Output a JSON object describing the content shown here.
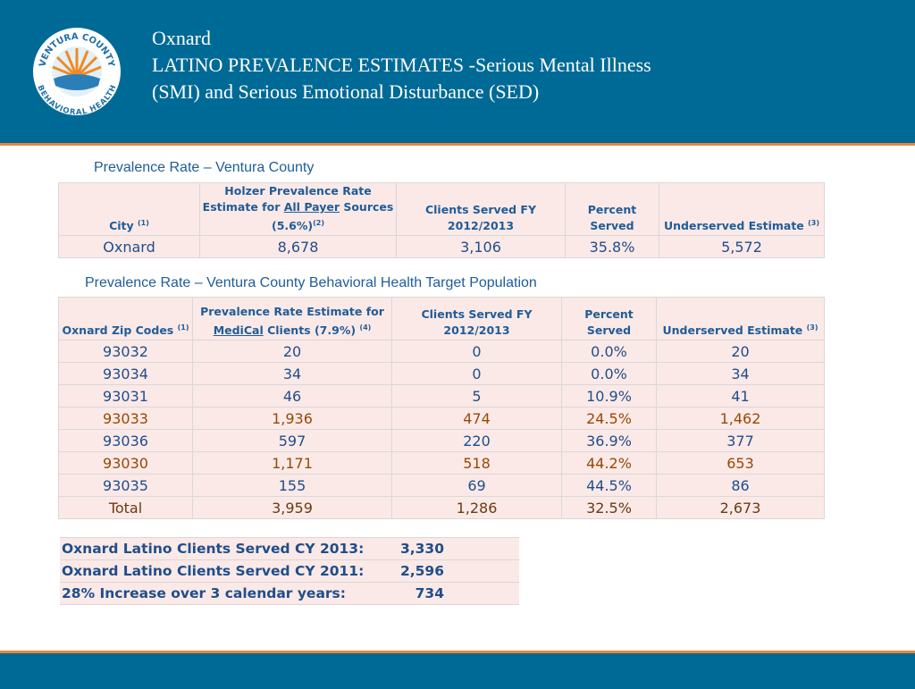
{
  "logo": {
    "top": "VENTURA COUNTY",
    "bottom": "BEHAVIORAL HEALTH"
  },
  "header": {
    "title_lines": [
      "Oxnard",
      "LATINO PREVALENCE ESTIMATES -Serious Mental Illness",
      "(SMI) and Serious Emotional Disturbance (SED)"
    ]
  },
  "section1": {
    "title": "Prevalence Rate – Ventura County",
    "table": {
      "header": [
        [
          {
            "text": "City "
          },
          {
            "text": "(1)",
            "sup": true
          }
        ],
        [
          {
            "text": "Holzer Prevalence Rate Estimate for "
          },
          {
            "text": "All Payer",
            "underline": true
          },
          {
            "text": " Sources (5.6%)"
          },
          {
            "text": "(2)",
            "sup": true
          }
        ],
        [
          {
            "text": "Clients Served FY 2012/2013"
          }
        ],
        [
          {
            "text": "Percent Served"
          }
        ],
        [
          {
            "text": "Underserved Estimate "
          },
          {
            "text": "(3)",
            "sup": true
          }
        ]
      ],
      "rows": [
        {
          "cells": [
            "Oxnard",
            "8,678",
            "3,106",
            "35.8%",
            "5,572"
          ],
          "color": "#1f4e8c"
        }
      ]
    }
  },
  "section2": {
    "title": "Prevalence Rate – Ventura County Behavioral Health Target Population",
    "table": {
      "header": [
        [
          {
            "text": "Oxnard Zip Codes "
          },
          {
            "text": "(1)",
            "sup": true
          }
        ],
        [
          {
            "text": "Prevalence Rate Estimate for "
          },
          {
            "text": "MediCal",
            "underline": true
          },
          {
            "text": " Clients (7.9%) "
          },
          {
            "text": "(4)",
            "sup": true
          }
        ],
        [
          {
            "text": "Clients Served FY 2012/2013"
          }
        ],
        [
          {
            "text": "Percent Served"
          }
        ],
        [
          {
            "text": "Underserved Estimate "
          },
          {
            "text": "(3)",
            "sup": true
          }
        ]
      ],
      "rows": [
        {
          "cells": [
            "93032",
            "20",
            "0",
            "0.0%",
            "20"
          ],
          "color": "#1f4e8c"
        },
        {
          "cells": [
            "93034",
            "34",
            "0",
            "0.0%",
            "34"
          ],
          "color": "#1f4e8c"
        },
        {
          "cells": [
            "93031",
            "46",
            "5",
            "10.9%",
            "41"
          ],
          "color": "#1f4e8c"
        },
        {
          "cells": [
            "93033",
            "1,936",
            "474",
            "24.5%",
            "1,462"
          ],
          "color": "#974806"
        },
        {
          "cells": [
            "93036",
            "597",
            "220",
            "36.9%",
            "377"
          ],
          "color": "#1f4e8c"
        },
        {
          "cells": [
            "93030",
            "1,171",
            "518",
            "44.2%",
            "653"
          ],
          "color": "#974806"
        },
        {
          "cells": [
            "93035",
            "155",
            "69",
            "44.5%",
            "86"
          ],
          "color": "#1f4e8c"
        },
        {
          "cells": [
            "Total",
            "3,959",
            "1,286",
            "32.5%",
            "2,673"
          ],
          "color": "#6b3a10"
        }
      ]
    }
  },
  "summary": {
    "rows": [
      [
        "Oxnard Latino Clients Served CY 2013:",
        "3,330"
      ],
      [
        "Oxnard Latino Clients Served CY 2011:",
        "2,596"
      ],
      [
        "28% Increase over 3 calendar years:",
        "734"
      ]
    ]
  }
}
